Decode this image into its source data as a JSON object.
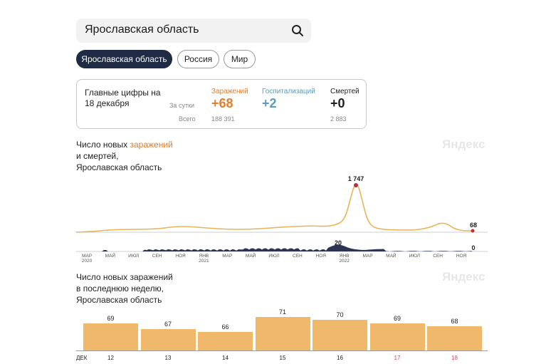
{
  "search": {
    "value": "Ярославская область"
  },
  "chips": [
    {
      "label": "Ярославская область",
      "active": true
    },
    {
      "label": "Россия",
      "active": false
    },
    {
      "label": "Мир",
      "active": false
    }
  ],
  "card": {
    "title": "Главные цифры на 18 декабря",
    "row_day": "За сутки",
    "row_total": "Всего",
    "cols": [
      {
        "head": "Заражений",
        "day": "+68",
        "total": "188 391",
        "color": "#e07f2e"
      },
      {
        "head": "Госпитализаций",
        "day": "+2",
        "total": "",
        "color": "#5b9bbd"
      },
      {
        "head": "Смертей",
        "day": "+0",
        "total": "2 883",
        "color": "#1f1f1f"
      }
    ]
  },
  "watermark": "Яндекс",
  "chart1": {
    "title_part1": "Число новых ",
    "title_accent": "заражений",
    "title_part2": "и смертей,",
    "title_part3": "Ярославская область",
    "peak_label": "1 747",
    "last_label": "68",
    "deaths_peak_label": "20",
    "deaths_last_label": "0",
    "months": [
      [
        "МАР",
        "2020"
      ],
      [
        "МАЙ",
        ""
      ],
      [
        "ИЮЛ",
        ""
      ],
      [
        "СЕН",
        ""
      ],
      [
        "НОЯ",
        ""
      ],
      [
        "ЯНВ",
        "2021"
      ],
      [
        "МАР",
        ""
      ],
      [
        "МАЙ",
        ""
      ],
      [
        "ИЮЛ",
        ""
      ],
      [
        "СЕН",
        ""
      ],
      [
        "НОЯ",
        ""
      ],
      [
        "ЯНВ",
        "2022"
      ],
      [
        "МАР",
        ""
      ],
      [
        "МАЙ",
        ""
      ],
      [
        "ИЮЛ",
        ""
      ],
      [
        "СЕН",
        ""
      ],
      [
        "НОЯ",
        ""
      ]
    ]
  },
  "chart2": {
    "title_line1": "Число новых заражений",
    "title_line2": "в последнюю неделю,",
    "title_line3": "Ярославская область",
    "month": "ДЕК"
  },
  "chart_data": [
    {
      "type": "line",
      "x_ticks": [
        "МАР 2020",
        "МАЙ",
        "ИЮЛ",
        "СЕН",
        "НОЯ",
        "ЯНВ 2021",
        "МАР",
        "МАЙ",
        "ИЮЛ",
        "СЕН",
        "НОЯ",
        "ЯНВ 2022",
        "МАР",
        "МАЙ",
        "ИЮЛ",
        "СЕН",
        "НОЯ"
      ],
      "series": [
        {
          "name": "заражений",
          "color": "#e8b45a",
          "peak": 1747,
          "peak_month": "ЯНВ 2022",
          "last": 68
        },
        {
          "name": "смертей",
          "color": "#2b3552",
          "peak": 20,
          "peak_month": "ЯНВ 2022",
          "last": 0
        }
      ]
    },
    {
      "type": "bar",
      "categories": [
        "12",
        "13",
        "14",
        "15",
        "16",
        "17",
        "18"
      ],
      "values": [
        69,
        67,
        66,
        71,
        70,
        69,
        68
      ],
      "weekend": [
        false,
        false,
        false,
        false,
        false,
        true,
        true
      ],
      "bar_color": "#f0b86a",
      "weekend_color": "#e2455d",
      "ylim": [
        0,
        71
      ]
    }
  ]
}
